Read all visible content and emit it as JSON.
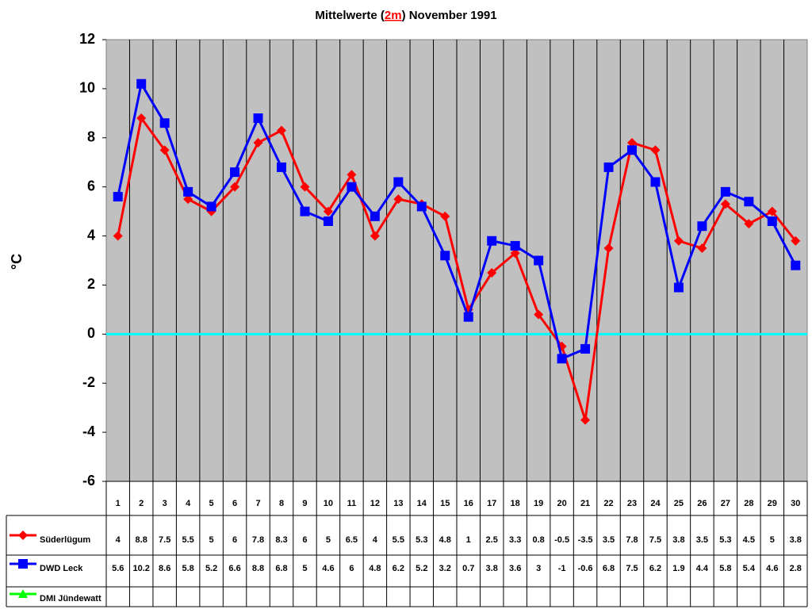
{
  "chart_data": {
    "type": "line",
    "title_parts": [
      "Mittelwerte (",
      "2m",
      ") November 1991"
    ],
    "y_label": "°C",
    "categories": [
      "1",
      "2",
      "3",
      "4",
      "5",
      "6",
      "7",
      "8",
      "9",
      "10",
      "11",
      "12",
      "13",
      "14",
      "15",
      "16",
      "17",
      "18",
      "19",
      "20",
      "21",
      "22",
      "23",
      "24",
      "25",
      "26",
      "27",
      "28",
      "29",
      "30"
    ],
    "series": [
      {
        "name": "Süderlügum",
        "color": "#ff0000",
        "marker": "diamond",
        "values": [
          4,
          8.8,
          7.5,
          5.5,
          5,
          6,
          7.8,
          8.3,
          6,
          5,
          6.5,
          4,
          5.5,
          5.3,
          4.8,
          1,
          2.5,
          3.3,
          0.8,
          -0.5,
          -3.5,
          3.5,
          7.8,
          7.5,
          3.8,
          3.5,
          5.3,
          4.5,
          5,
          3.8
        ]
      },
      {
        "name": "DWD Leck",
        "color": "#0000ff",
        "marker": "square",
        "values": [
          5.6,
          10.2,
          8.6,
          5.8,
          5.2,
          6.6,
          8.8,
          6.8,
          5,
          4.6,
          6,
          4.8,
          6.2,
          5.2,
          3.2,
          0.7,
          3.8,
          3.6,
          3,
          -1,
          -0.6,
          6.8,
          7.5,
          6.2,
          1.9,
          4.4,
          5.8,
          5.4,
          4.6,
          2.8
        ]
      },
      {
        "name": "DMI Jündewatt",
        "color": "#00ff00",
        "marker": "triangle",
        "values": [
          null,
          null,
          null,
          null,
          null,
          null,
          null,
          null,
          null,
          null,
          null,
          null,
          null,
          null,
          null,
          null,
          null,
          null,
          null,
          null,
          null,
          null,
          null,
          null,
          null,
          null,
          null,
          null,
          null,
          null
        ]
      }
    ],
    "ylim": [
      -6,
      12
    ],
    "yticks": [
      -6,
      -4,
      -2,
      0,
      2,
      4,
      6,
      8,
      10,
      12
    ],
    "grid": "vertical",
    "zero_line_color": "#00ffff",
    "plot_background": "#c0c0c0",
    "data_table": true
  }
}
